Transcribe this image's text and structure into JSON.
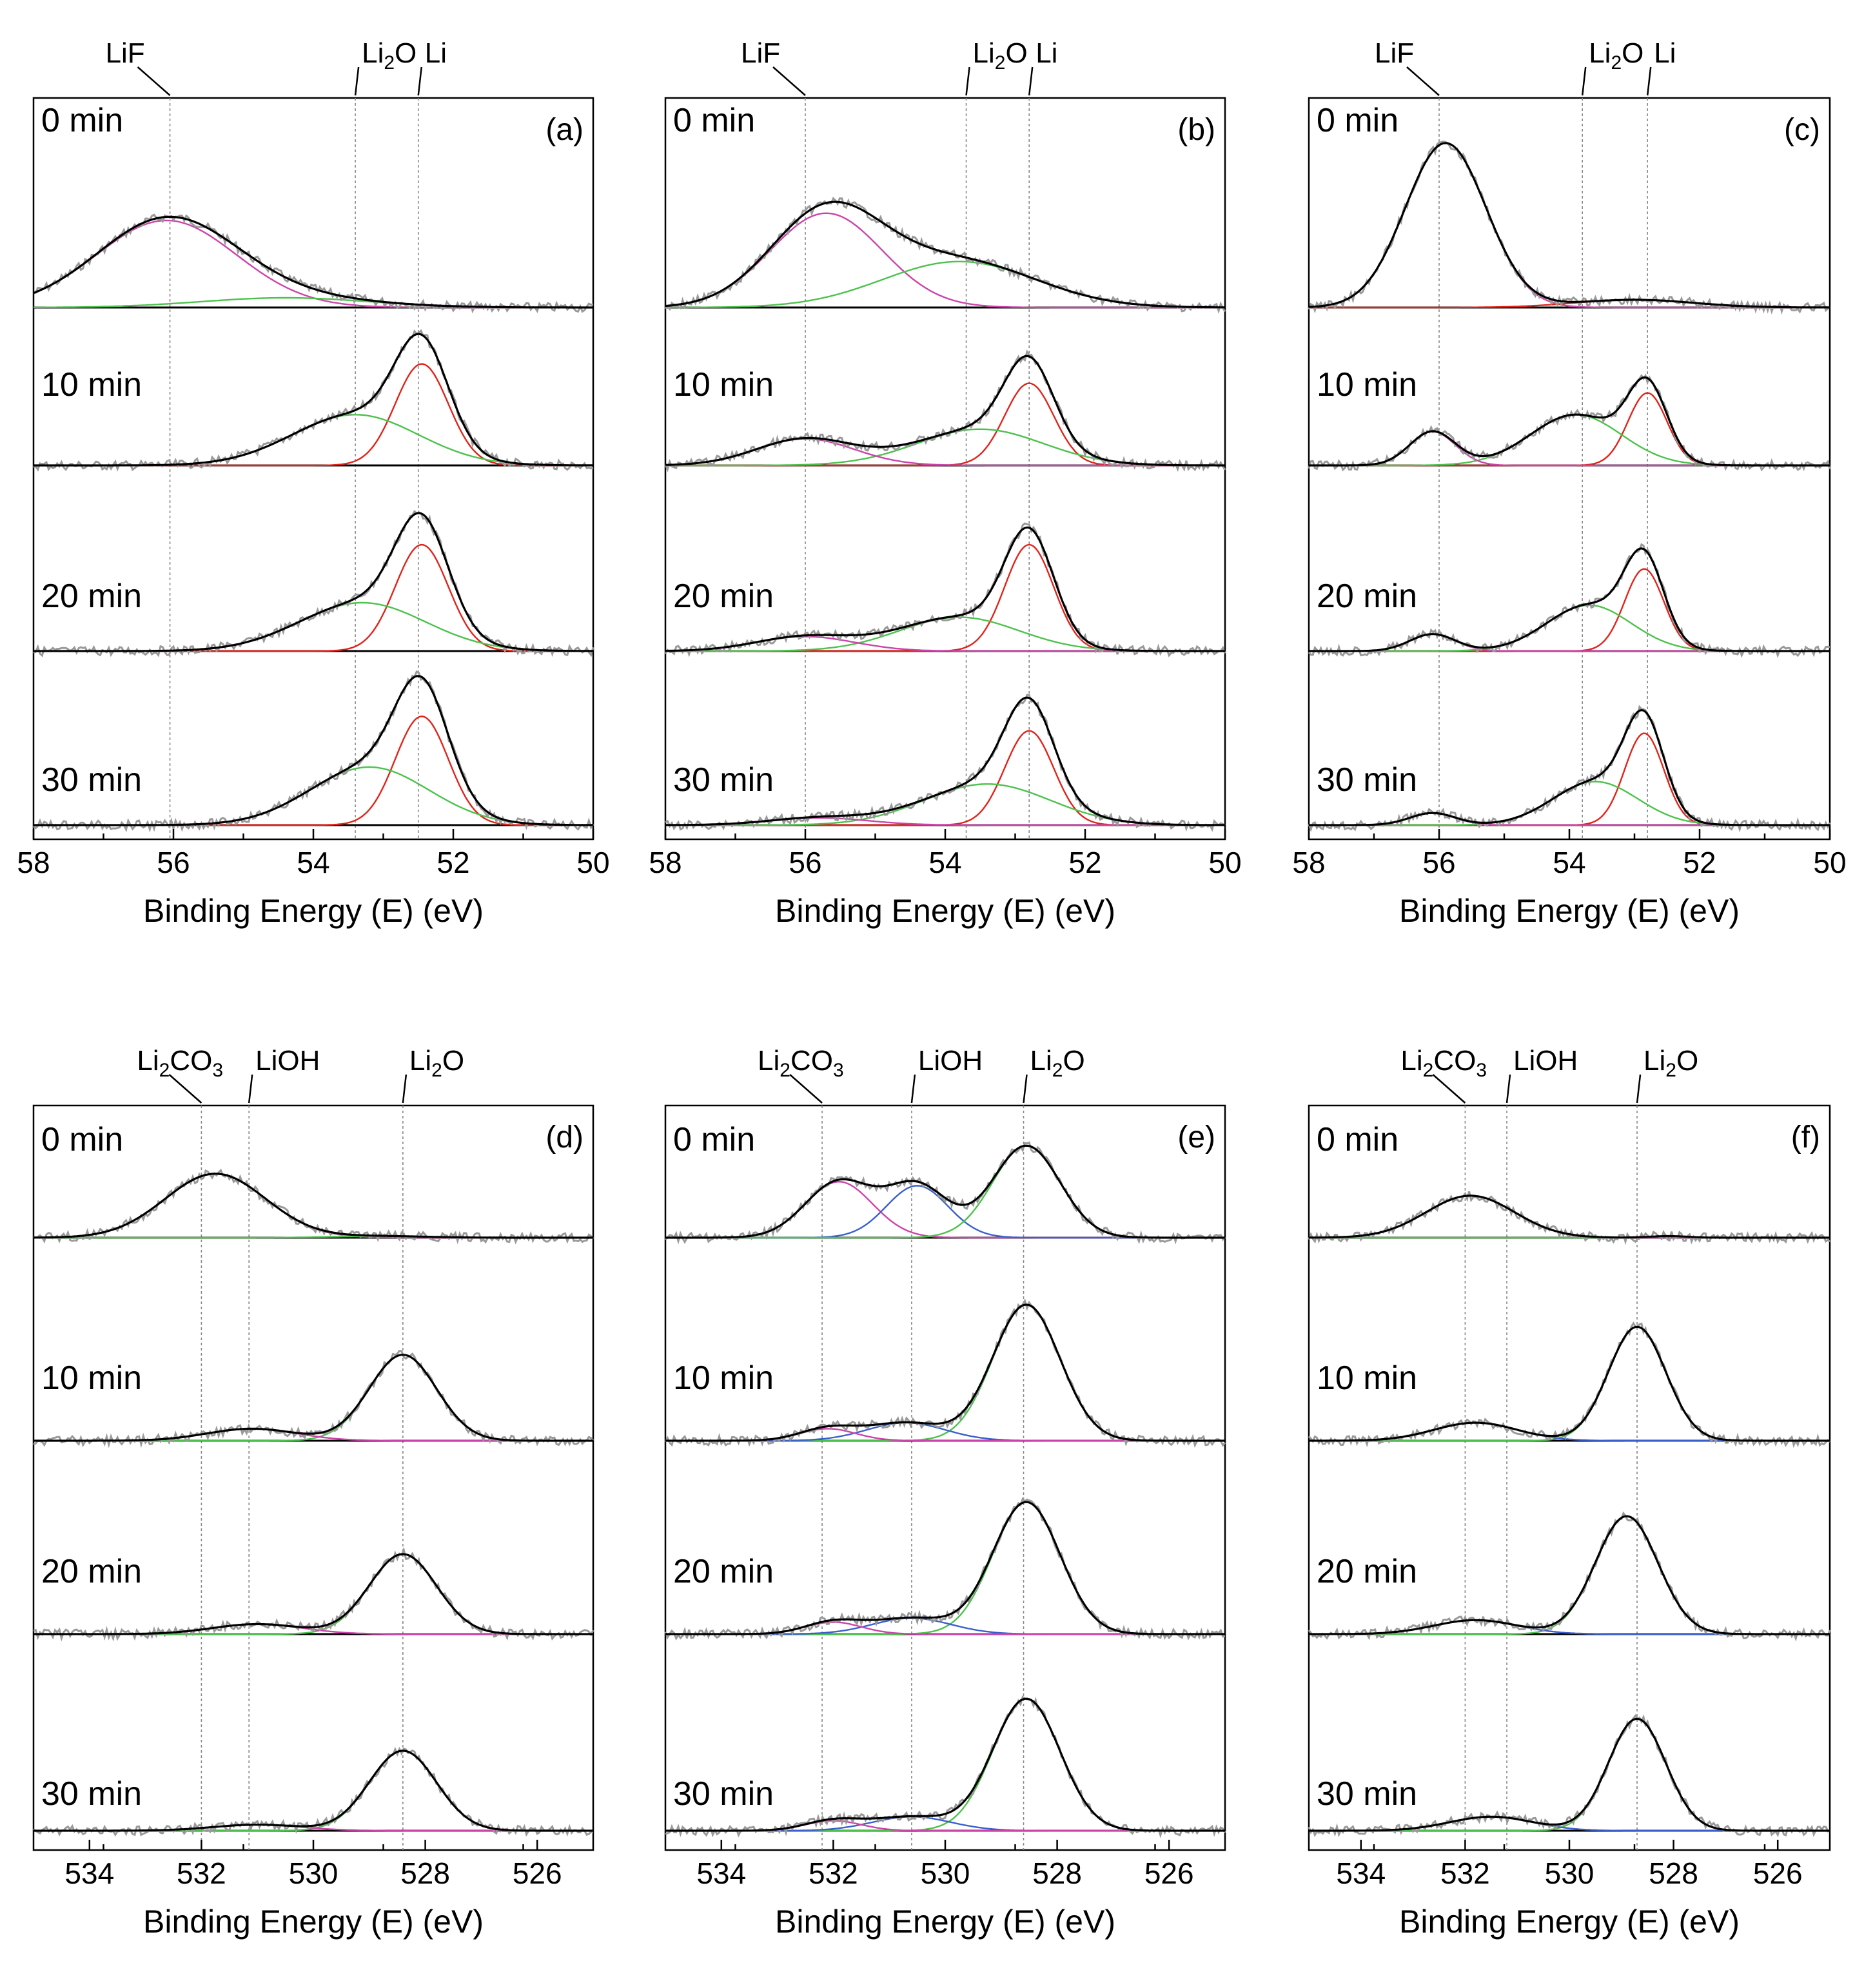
{
  "colors": {
    "raw": "#9a9a9a",
    "envelope": "#000000",
    "Li": "#e2231a",
    "LiF": "#cc44aa",
    "Li2O": "#4cc24c",
    "LiOH": "#3a5fcd",
    "Li2CO3": "#cc44aa"
  },
  "chart_data": [
    {
      "id": "a",
      "panel_label": "(a)",
      "type": "line",
      "xlabel": "Binding Energy (E) (eV)",
      "xlim": [
        58,
        50
      ],
      "xticks": [
        "58",
        "56",
        "54",
        "52",
        "50"
      ],
      "ref_labels": [
        {
          "text": "LiF",
          "x": 56.05
        },
        {
          "html": "Li<tspan class=\"sub\" dy=\"10\">2</tspan><tspan dy=\"-10\">O</tspan>",
          "text": "Li2O",
          "x": 53.4
        },
        {
          "text": "Li",
          "x": 52.5
        }
      ],
      "series": [
        {
          "name": "0 min",
          "peaks": [
            {
              "c": 56.1,
              "h": 1.8,
              "w": 1.0,
              "comp": "LiF"
            },
            {
              "c": 54.4,
              "h": 0.2,
              "w": 1.2,
              "comp": "Li2O"
            }
          ]
        },
        {
          "name": "10 min",
          "peaks": [
            {
              "c": 52.45,
              "h": 2.1,
              "w": 0.38,
              "comp": "Li"
            },
            {
              "c": 53.4,
              "h": 1.05,
              "w": 0.9,
              "comp": "Li2O"
            }
          ]
        },
        {
          "name": "20 min",
          "peaks": [
            {
              "c": 52.45,
              "h": 2.2,
              "w": 0.38,
              "comp": "Li"
            },
            {
              "c": 53.3,
              "h": 1.0,
              "w": 0.9,
              "comp": "Li2O"
            }
          ]
        },
        {
          "name": "30 min",
          "peaks": [
            {
              "c": 52.45,
              "h": 2.25,
              "w": 0.38,
              "comp": "Li"
            },
            {
              "c": 53.2,
              "h": 1.2,
              "w": 0.85,
              "comp": "Li2O"
            }
          ]
        }
      ]
    },
    {
      "id": "b",
      "panel_label": "(b)",
      "type": "line",
      "xlabel": "Binding Energy (E) (eV)",
      "xlim": [
        58,
        50
      ],
      "xticks": [
        "58",
        "56",
        "54",
        "52",
        "50"
      ],
      "ref_labels": [
        {
          "text": "LiF",
          "x": 56.0
        },
        {
          "html": "Li<tspan class=\"sub\" dy=\"10\">2</tspan><tspan dy=\"-10\">O</tspan>",
          "text": "Li2O",
          "x": 53.7
        },
        {
          "text": "Li",
          "x": 52.8
        }
      ],
      "series": [
        {
          "name": "0 min",
          "peaks": [
            {
              "c": 55.7,
              "h": 1.95,
              "w": 0.8,
              "comp": "LiF"
            },
            {
              "c": 53.8,
              "h": 0.95,
              "w": 1.1,
              "comp": "Li2O"
            }
          ]
        },
        {
          "name": "10 min",
          "peaks": [
            {
              "c": 52.8,
              "h": 1.7,
              "w": 0.35,
              "comp": "Li"
            },
            {
              "c": 53.5,
              "h": 0.75,
              "w": 0.9,
              "comp": "Li2O"
            },
            {
              "c": 56.0,
              "h": 0.55,
              "w": 0.7,
              "comp": "LiF"
            }
          ]
        },
        {
          "name": "20 min",
          "peaks": [
            {
              "c": 52.8,
              "h": 2.2,
              "w": 0.35,
              "comp": "Li"
            },
            {
              "c": 53.8,
              "h": 0.7,
              "w": 0.85,
              "comp": "Li2O"
            },
            {
              "c": 56.0,
              "h": 0.3,
              "w": 0.7,
              "comp": "LiF"
            }
          ]
        },
        {
          "name": "30 min",
          "peaks": [
            {
              "c": 52.8,
              "h": 1.95,
              "w": 0.35,
              "comp": "Li"
            },
            {
              "c": 53.4,
              "h": 0.85,
              "w": 0.9,
              "comp": "Li2O"
            },
            {
              "c": 55.8,
              "h": 0.15,
              "w": 0.7,
              "comp": "LiF"
            }
          ]
        }
      ]
    },
    {
      "id": "c",
      "panel_label": "(c)",
      "type": "line",
      "xlabel": "Binding Energy (E) (eV)",
      "xlim": [
        58,
        50
      ],
      "xticks": [
        "58",
        "56",
        "54",
        "52",
        "50"
      ],
      "ref_labels": [
        {
          "text": "LiF",
          "x": 56.0
        },
        {
          "html": "Li<tspan class=\"sub\" dy=\"10\">2</tspan><tspan dy=\"-10\">O</tspan>",
          "text": "Li2O",
          "x": 53.8
        },
        {
          "text": "Li",
          "x": 52.8
        }
      ],
      "series": [
        {
          "name": "0 min",
          "peaks": [
            {
              "c": 55.9,
              "h": 3.4,
              "w": 0.62,
              "comp": "LiF"
            },
            {
              "c": 53.0,
              "h": 0.16,
              "w": 0.9,
              "comp": "Li"
            }
          ]
        },
        {
          "name": "10 min",
          "peaks": [
            {
              "c": 52.8,
              "h": 1.5,
              "w": 0.3,
              "comp": "Li"
            },
            {
              "c": 53.9,
              "h": 1.05,
              "w": 0.7,
              "comp": "Li2O"
            },
            {
              "c": 56.1,
              "h": 0.7,
              "w": 0.35,
              "comp": "LiF"
            }
          ]
        },
        {
          "name": "20 min",
          "peaks": [
            {
              "c": 52.85,
              "h": 1.7,
              "w": 0.3,
              "comp": "Li"
            },
            {
              "c": 53.7,
              "h": 0.95,
              "w": 0.65,
              "comp": "Li2O"
            },
            {
              "c": 56.1,
              "h": 0.35,
              "w": 0.35,
              "comp": "LiF"
            }
          ]
        },
        {
          "name": "30 min",
          "peaks": [
            {
              "c": 52.85,
              "h": 1.9,
              "w": 0.3,
              "comp": "Li"
            },
            {
              "c": 53.6,
              "h": 0.9,
              "w": 0.65,
              "comp": "Li2O"
            },
            {
              "c": 56.1,
              "h": 0.25,
              "w": 0.35,
              "comp": "LiF"
            }
          ]
        }
      ]
    },
    {
      "id": "d",
      "panel_label": "(d)",
      "type": "line",
      "xlabel": "Binding Energy (E) (eV)",
      "xlim": [
        535,
        525
      ],
      "xticks": [
        "534",
        "532",
        "530",
        "528",
        "526"
      ],
      "ref_labels": [
        {
          "html": "Li<tspan class=\"sub\" dy=\"10\">2</tspan><tspan dy=\"-10\">CO</tspan><tspan class=\"sub\" dy=\"10\">3</tspan>",
          "text": "Li2CO3",
          "x": 532.0
        },
        {
          "text": "LiOH",
          "x": 531.15
        },
        {
          "html": "Li<tspan class=\"sub\" dy=\"10\">2</tspan><tspan dy=\"-10\">O</tspan>",
          "text": "Li2O",
          "x": 528.4
        }
      ],
      "series": [
        {
          "name": "0 min",
          "peaks": [
            {
              "c": 531.75,
              "h": 1.6,
              "w": 0.9,
              "comp": "Li2CO3"
            },
            {
              "c": 528.8,
              "h": 0.04,
              "w": 0.8,
              "comp": "Li2O"
            }
          ]
        },
        {
          "name": "10 min",
          "peaks": [
            {
              "c": 528.4,
              "h": 2.15,
              "w": 0.6,
              "comp": "Li2O"
            },
            {
              "c": 531.1,
              "h": 0.3,
              "w": 0.8,
              "comp": "Li2CO3"
            }
          ]
        },
        {
          "name": "20 min",
          "peaks": [
            {
              "c": 528.4,
              "h": 2.0,
              "w": 0.6,
              "comp": "Li2O"
            },
            {
              "c": 531.0,
              "h": 0.25,
              "w": 0.8,
              "comp": "Li2CO3"
            }
          ]
        },
        {
          "name": "30 min",
          "peaks": [
            {
              "c": 528.4,
              "h": 2.0,
              "w": 0.6,
              "comp": "Li2O"
            },
            {
              "c": 531.0,
              "h": 0.15,
              "w": 0.8,
              "comp": "Li2CO3"
            }
          ]
        }
      ]
    },
    {
      "id": "e",
      "panel_label": "(e)",
      "type": "line",
      "xlabel": "Binding Energy (E) (eV)",
      "xlim": [
        535,
        525
      ],
      "xticks": [
        "534",
        "532",
        "530",
        "528",
        "526"
      ],
      "ref_labels": [
        {
          "html": "Li<tspan class=\"sub\" dy=\"10\">2</tspan><tspan dy=\"-10\">CO</tspan><tspan class=\"sub\" dy=\"10\">3</tspan>",
          "text": "Li2CO3",
          "x": 532.2
        },
        {
          "text": "LiOH",
          "x": 530.6
        },
        {
          "html": "Li<tspan class=\"sub\" dy=\"10\">2</tspan><tspan dy=\"-10\">O</tspan>",
          "text": "Li2O",
          "x": 528.6
        }
      ],
      "series": [
        {
          "name": "0 min",
          "peaks": [
            {
              "c": 531.9,
              "h": 1.4,
              "w": 0.6,
              "comp": "Li2CO3"
            },
            {
              "c": 530.5,
              "h": 1.3,
              "w": 0.55,
              "comp": "LiOH"
            },
            {
              "c": 528.55,
              "h": 2.3,
              "w": 0.6,
              "comp": "Li2O"
            }
          ]
        },
        {
          "name": "10 min",
          "peaks": [
            {
              "c": 528.55,
              "h": 3.4,
              "w": 0.6,
              "comp": "Li2O"
            },
            {
              "c": 530.7,
              "h": 0.45,
              "w": 0.7,
              "comp": "LiOH"
            },
            {
              "c": 532.1,
              "h": 0.3,
              "w": 0.5,
              "comp": "Li2CO3"
            }
          ]
        },
        {
          "name": "20 min",
          "peaks": [
            {
              "c": 528.55,
              "h": 3.3,
              "w": 0.6,
              "comp": "Li2O"
            },
            {
              "c": 530.6,
              "h": 0.4,
              "w": 0.7,
              "comp": "LiOH"
            },
            {
              "c": 532.0,
              "h": 0.3,
              "w": 0.5,
              "comp": "Li2CO3"
            }
          ]
        },
        {
          "name": "30 min",
          "peaks": [
            {
              "c": 528.55,
              "h": 3.3,
              "w": 0.6,
              "comp": "Li2O"
            },
            {
              "c": 530.6,
              "h": 0.35,
              "w": 0.7,
              "comp": "LiOH"
            },
            {
              "c": 532.0,
              "h": 0.25,
              "w": 0.5,
              "comp": "Li2CO3"
            }
          ]
        }
      ]
    },
    {
      "id": "f",
      "panel_label": "(f)",
      "type": "line",
      "xlabel": "Binding Energy (E) (eV)",
      "xlim": [
        535,
        525
      ],
      "xticks": [
        "534",
        "532",
        "530",
        "528",
        "526"
      ],
      "ref_labels": [
        {
          "html": "Li<tspan class=\"sub\" dy=\"10\">2</tspan><tspan dy=\"-10\">CO</tspan><tspan class=\"sub\" dy=\"10\">3</tspan>",
          "text": "Li2CO3",
          "x": 532.0
        },
        {
          "text": "LiOH",
          "x": 531.2
        },
        {
          "html": "Li<tspan class=\"sub\" dy=\"10\">2</tspan><tspan dy=\"-10\">O</tspan>",
          "text": "Li2O",
          "x": 528.7
        }
      ],
      "series": [
        {
          "name": "0 min",
          "peaks": [
            {
              "c": 531.9,
              "h": 1.05,
              "w": 0.85,
              "comp": "Li2CO3"
            },
            {
              "c": 528.1,
              "h": 0.04,
              "w": 0.35,
              "comp": "Li2O"
            }
          ]
        },
        {
          "name": "10 min",
          "peaks": [
            {
              "c": 528.7,
              "h": 2.85,
              "w": 0.55,
              "comp": "Li2O"
            },
            {
              "c": 531.8,
              "h": 0.45,
              "w": 0.8,
              "comp": "LiOH"
            }
          ]
        },
        {
          "name": "20 min",
          "peaks": [
            {
              "c": 528.9,
              "h": 2.95,
              "w": 0.6,
              "comp": "Li2O"
            },
            {
              "c": 531.8,
              "h": 0.35,
              "w": 0.8,
              "comp": "LiOH"
            }
          ]
        },
        {
          "name": "30 min",
          "peaks": [
            {
              "c": 528.7,
              "h": 2.8,
              "w": 0.55,
              "comp": "Li2O"
            },
            {
              "c": 531.5,
              "h": 0.35,
              "w": 0.8,
              "comp": "LiOH"
            }
          ]
        }
      ]
    }
  ]
}
